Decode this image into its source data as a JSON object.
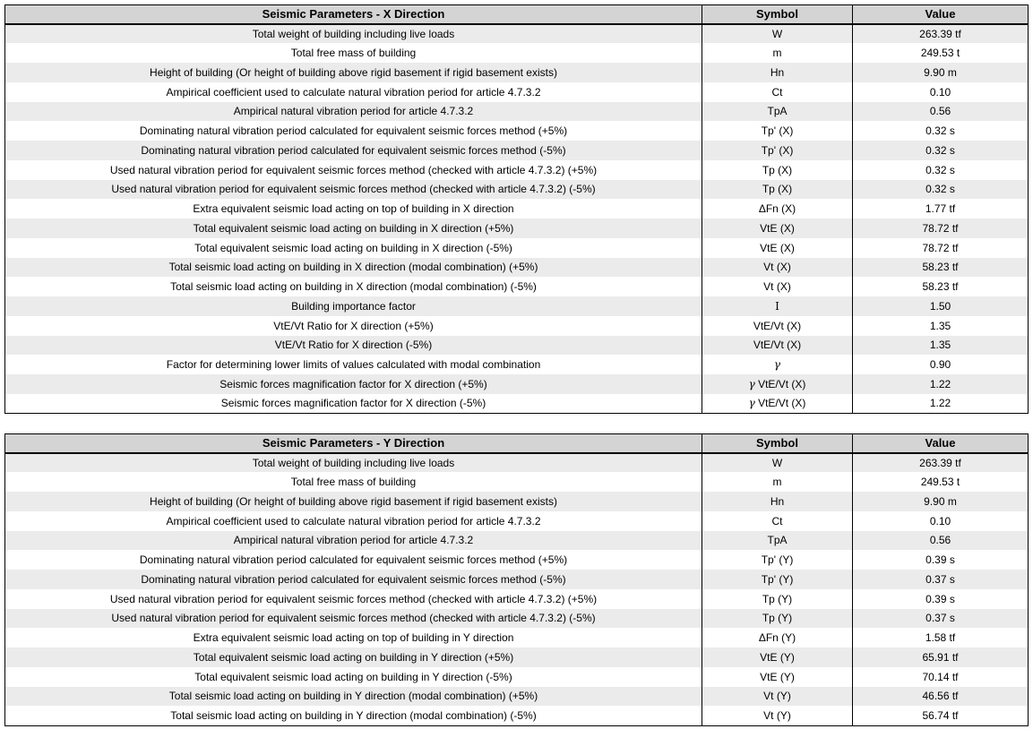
{
  "colors": {
    "header_bg": "#d4d4d4",
    "row_alt_bg": "#ebebeb",
    "row_bg": "#ffffff",
    "border": "#000000",
    "text": "#000000"
  },
  "tables": [
    {
      "title": "Seismic Parameters - X Direction",
      "columns": {
        "symbol": "Symbol",
        "value": "Value"
      },
      "rows": [
        {
          "description": "Total weight of building including live loads",
          "symbol": "W",
          "value": "263.39 tf"
        },
        {
          "description": "Total free mass of building",
          "symbol": "m",
          "value": "249.53 t"
        },
        {
          "description": "Height of building (Or height of building above rigid basement if rigid basement exists)",
          "symbol": "Hn",
          "value": "9.90 m"
        },
        {
          "description": "Ampirical coefficient used to calculate natural vibration period for article 4.7.3.2",
          "symbol": "Ct",
          "value": "0.10"
        },
        {
          "description": "Ampirical natural vibration period for article 4.7.3.2",
          "symbol": "TpA",
          "value": "0.56"
        },
        {
          "description": "Dominating natural vibration period calculated for equivalent seismic forces method (+5%)",
          "symbol": "Tp' (X)",
          "value": "0.32 s"
        },
        {
          "description": "Dominating natural vibration period calculated for equivalent seismic forces method (-5%)",
          "symbol": "Tp' (X)",
          "value": "0.32 s"
        },
        {
          "description": "Used natural vibration period for equivalent seismic forces method (checked with article 4.7.3.2) (+5%)",
          "symbol": "Tp (X)",
          "value": "0.32 s"
        },
        {
          "description": "Used natural vibration period for equivalent seismic forces method (checked with article 4.7.3.2) (-5%)",
          "symbol": "Tp (X)",
          "value": "0.32 s"
        },
        {
          "description": "Extra equivalent seismic load acting on top of building in X direction",
          "symbol": "ΔFn (X)",
          "value": "1.77 tf"
        },
        {
          "description": "Total equivalent seismic load acting on building in X direction (+5%)",
          "symbol": "VtE (X)",
          "value": "78.72 tf"
        },
        {
          "description": "Total equivalent seismic load acting on building in X direction (-5%)",
          "symbol": "VtE (X)",
          "value": "78.72 tf"
        },
        {
          "description": "Total seismic load acting on building in X direction (modal combination) (+5%)",
          "symbol": "Vt (X)",
          "value": "58.23 tf"
        },
        {
          "description": "Total seismic load acting on building in X direction (modal combination) (-5%)",
          "symbol": "Vt (X)",
          "value": "58.23 tf"
        },
        {
          "description": "Building importance factor",
          "symbol": "I",
          "value": "1.50"
        },
        {
          "description": "VtE/Vt Ratio for X direction (+5%)",
          "symbol": "VtE/Vt (X)",
          "value": "1.35"
        },
        {
          "description": "VtE/Vt Ratio for X direction (-5%)",
          "symbol": "VtE/Vt (X)",
          "value": "1.35"
        },
        {
          "description": "Factor for determining lower limits of values calculated with modal combination",
          "symbol": "γ",
          "value": "0.90"
        },
        {
          "description": "Seismic forces magnification factor for X direction (+5%)",
          "symbol": "γ VtE/Vt (X)",
          "value": "1.22"
        },
        {
          "description": "Seismic forces magnification factor for X direction (-5%)",
          "symbol": "γ VtE/Vt (X)",
          "value": "1.22"
        }
      ]
    },
    {
      "title": "Seismic Parameters - Y Direction",
      "columns": {
        "symbol": "Symbol",
        "value": "Value"
      },
      "rows": [
        {
          "description": "Total weight of building including live loads",
          "symbol": "W",
          "value": "263.39 tf"
        },
        {
          "description": "Total free mass of building",
          "symbol": "m",
          "value": "249.53 t"
        },
        {
          "description": "Height of building (Or height of building above rigid basement if rigid basement exists)",
          "symbol": "Hn",
          "value": "9.90 m"
        },
        {
          "description": "Ampirical coefficient used to calculate natural vibration period for article 4.7.3.2",
          "symbol": "Ct",
          "value": "0.10"
        },
        {
          "description": "Ampirical natural vibration period for article 4.7.3.2",
          "symbol": "TpA",
          "value": "0.56"
        },
        {
          "description": "Dominating natural vibration period calculated for equivalent seismic forces method (+5%)",
          "symbol": "Tp' (Y)",
          "value": "0.39 s"
        },
        {
          "description": "Dominating natural vibration period calculated for equivalent seismic forces method (-5%)",
          "symbol": "Tp' (Y)",
          "value": "0.37 s"
        },
        {
          "description": "Used natural vibration period for equivalent seismic forces method (checked with article 4.7.3.2) (+5%)",
          "symbol": "Tp (Y)",
          "value": "0.39 s"
        },
        {
          "description": "Used natural vibration period for equivalent seismic forces method (checked with article 4.7.3.2) (-5%)",
          "symbol": "Tp (Y)",
          "value": "0.37 s"
        },
        {
          "description": "Extra equivalent seismic load acting on top of building in Y direction",
          "symbol": "ΔFn (Y)",
          "value": "1.58 tf"
        },
        {
          "description": "Total equivalent seismic load acting on building in Y direction (+5%)",
          "symbol": "VtE (Y)",
          "value": "65.91 tf"
        },
        {
          "description": "Total equivalent seismic load acting on building in Y direction (-5%)",
          "symbol": "VtE (Y)",
          "value": "70.14 tf"
        },
        {
          "description": "Total seismic load acting on building in Y direction (modal combination) (+5%)",
          "symbol": "Vt (Y)",
          "value": "46.56 tf"
        },
        {
          "description": "Total seismic load acting on building in Y direction (modal combination) (-5%)",
          "symbol": "Vt (Y)",
          "value": "56.74 tf"
        }
      ]
    }
  ]
}
